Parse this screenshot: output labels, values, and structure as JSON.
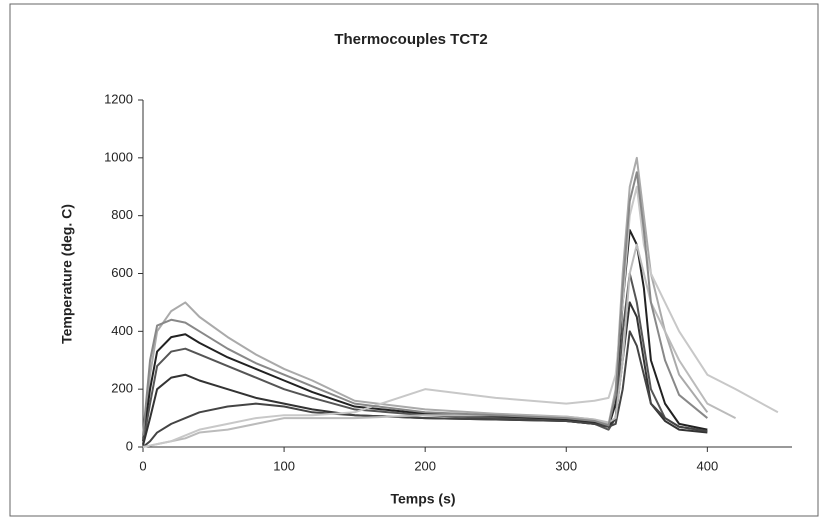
{
  "chart_data": {
    "type": "line",
    "title": "Thermocouples TCT2",
    "x_label": "Temps (s)",
    "y_label": "Temperature (deg. C)",
    "x": [
      0,
      5,
      10,
      20,
      30,
      40,
      60,
      80,
      100,
      120,
      150,
      200,
      250,
      300,
      320,
      330,
      335,
      340,
      345,
      350,
      355,
      360,
      370,
      380,
      400,
      420,
      450
    ],
    "series": [
      {
        "color": "#aaaaaa",
        "values": [
          30,
          250,
          400,
          470,
          500,
          450,
          380,
          320,
          270,
          230,
          160,
          130,
          115,
          105,
          95,
          80,
          200,
          600,
          900,
          1000,
          800,
          600,
          400,
          250,
          120,
          null,
          null
        ]
      },
      {
        "color": "#222222",
        "values": [
          20,
          200,
          330,
          380,
          390,
          360,
          310,
          270,
          230,
          190,
          140,
          115,
          105,
          95,
          85,
          70,
          150,
          500,
          750,
          700,
          550,
          300,
          150,
          80,
          60,
          null,
          null
        ]
      },
      {
        "color": "#555555",
        "values": [
          10,
          150,
          280,
          330,
          340,
          320,
          280,
          240,
          200,
          170,
          130,
          110,
          100,
          90,
          80,
          60,
          100,
          400,
          600,
          500,
          350,
          200,
          100,
          70,
          55,
          null,
          null
        ]
      },
      {
        "color": "#333333",
        "values": [
          5,
          100,
          200,
          240,
          250,
          230,
          200,
          170,
          150,
          130,
          110,
          100,
          95,
          90,
          80,
          70,
          100,
          300,
          500,
          450,
          300,
          150,
          90,
          60,
          50,
          null,
          null
        ]
      },
      {
        "color": "#444444",
        "values": [
          0,
          20,
          50,
          80,
          100,
          120,
          140,
          150,
          140,
          120,
          110,
          100,
          95,
          90,
          80,
          70,
          80,
          200,
          400,
          350,
          250,
          150,
          100,
          70,
          55,
          null,
          null
        ]
      },
      {
        "color": "#bbbbbb",
        "values": [
          0,
          5,
          10,
          20,
          30,
          50,
          60,
          80,
          100,
          100,
          100,
          110,
          110,
          105,
          95,
          85,
          100,
          300,
          600,
          700,
          600,
          500,
          400,
          300,
          150,
          100,
          null
        ]
      },
      {
        "color": "#c8c8c8",
        "values": [
          0,
          5,
          10,
          20,
          40,
          60,
          80,
          100,
          110,
          110,
          120,
          200,
          170,
          150,
          160,
          170,
          250,
          500,
          800,
          900,
          700,
          600,
          500,
          400,
          250,
          200,
          120
        ]
      },
      {
        "color": "#888888",
        "values": [
          40,
          300,
          420,
          440,
          430,
          400,
          340,
          290,
          250,
          210,
          150,
          120,
          110,
          100,
          90,
          75,
          180,
          550,
          850,
          950,
          750,
          500,
          300,
          180,
          100,
          null,
          null
        ]
      }
    ],
    "xlim": [
      0,
      460
    ],
    "ylim": [
      0,
      1200
    ],
    "xticks": [
      0,
      100,
      200,
      300,
      400
    ],
    "yticks": [
      0,
      200,
      400,
      600,
      800,
      1000,
      1200
    ],
    "grid": false
  }
}
